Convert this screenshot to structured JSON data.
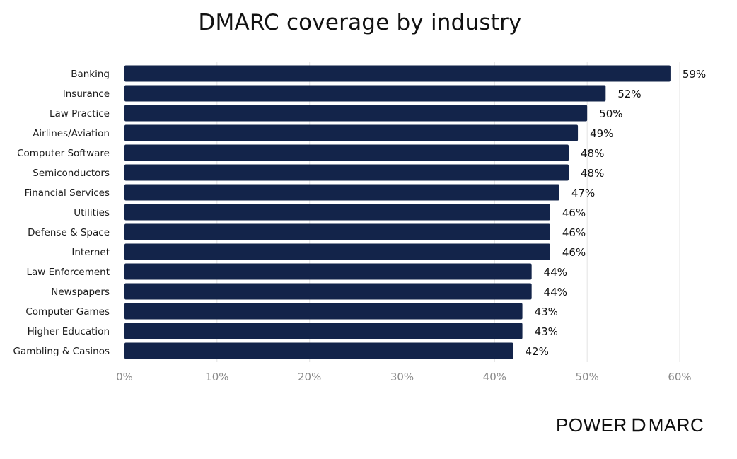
{
  "chart_data": {
    "type": "bar",
    "orientation": "horizontal",
    "title": "DMARC coverage by industry",
    "categories": [
      "Banking",
      "Insurance",
      "Law Practice",
      "Airlines/Aviation",
      "Computer Software",
      "Semiconductors",
      "Financial Services",
      "Utilities",
      "Defense & Space",
      "Internet",
      "Law Enforcement",
      "Newspapers",
      "Computer Games",
      "Higher Education",
      "Gambling & Casinos"
    ],
    "values": [
      59,
      52,
      50,
      49,
      48,
      48,
      47,
      46,
      46,
      46,
      44,
      44,
      43,
      43,
      42
    ],
    "value_labels": [
      "59%",
      "52%",
      "50%",
      "49%",
      "48%",
      "48%",
      "47%",
      "46%",
      "46%",
      "46%",
      "44%",
      "44%",
      "43%",
      "43%",
      "42%"
    ],
    "xticks": [
      0,
      10,
      20,
      30,
      40,
      50,
      60
    ],
    "xtick_labels": [
      "0%",
      "10%",
      "20%",
      "30%",
      "40%",
      "50%",
      "60%"
    ],
    "xlim": [
      0,
      60
    ],
    "xlabel": "",
    "ylabel": "",
    "grid": "vertical",
    "bar_color": "#13244a"
  },
  "logo": {
    "text": "POWER DMARC",
    "part_a": "POWER",
    "part_b": "MARC"
  }
}
